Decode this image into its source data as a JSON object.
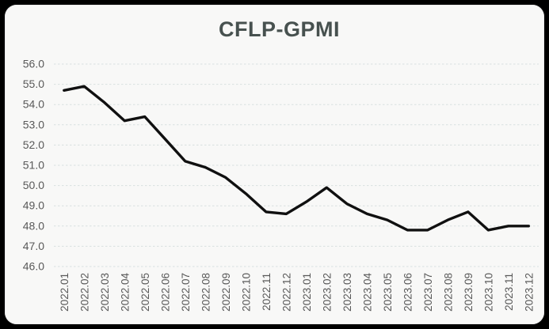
{
  "page": {
    "background": "#000000"
  },
  "card": {
    "background": "#f8f8f7",
    "border_radius": 15
  },
  "chart_data": {
    "type": "line",
    "title": "CFLP-GPMI",
    "title_color": "#47514f",
    "xlabel": "",
    "ylabel": "",
    "legend": "none",
    "categories": [
      "2022.01",
      "2022.02",
      "2022.03",
      "2022.04",
      "2022.05",
      "2022.06",
      "2022.07",
      "2022.08",
      "2022.09",
      "2022.10",
      "2022.11",
      "2022.12",
      "2023.01",
      "2023.02",
      "2023.03",
      "2023.04",
      "2023.05",
      "2023.06",
      "2023.07",
      "2023.08",
      "2023.09",
      "2023.10",
      "2023.11",
      "2023.12"
    ],
    "series": [
      {
        "name": "CFLP-GPMI",
        "color": "#101010",
        "line_width": 3.4,
        "values": [
          54.7,
          54.9,
          54.1,
          53.2,
          53.4,
          52.3,
          51.2,
          50.9,
          50.4,
          49.6,
          48.7,
          48.6,
          49.2,
          49.9,
          49.1,
          48.6,
          48.3,
          47.8,
          47.8,
          48.3,
          48.7,
          47.8,
          48.0,
          48.0
        ]
      }
    ],
    "ylim": [
      46.0,
      56.0
    ],
    "ytick_step": 1.0,
    "ytick_decimals": 1,
    "ytick_labels": [
      "56.0",
      "55.0",
      "54.0",
      "53.0",
      "52.0",
      "51.0",
      "50.0",
      "49.0",
      "48.0",
      "47.0",
      "46.0"
    ],
    "x_tick_rotation": -90,
    "tick_label_color": "#595959",
    "grid": {
      "horizontal": true,
      "vertical": false,
      "style": "dashed",
      "color": "#d7e0e0"
    },
    "markers": "none"
  }
}
